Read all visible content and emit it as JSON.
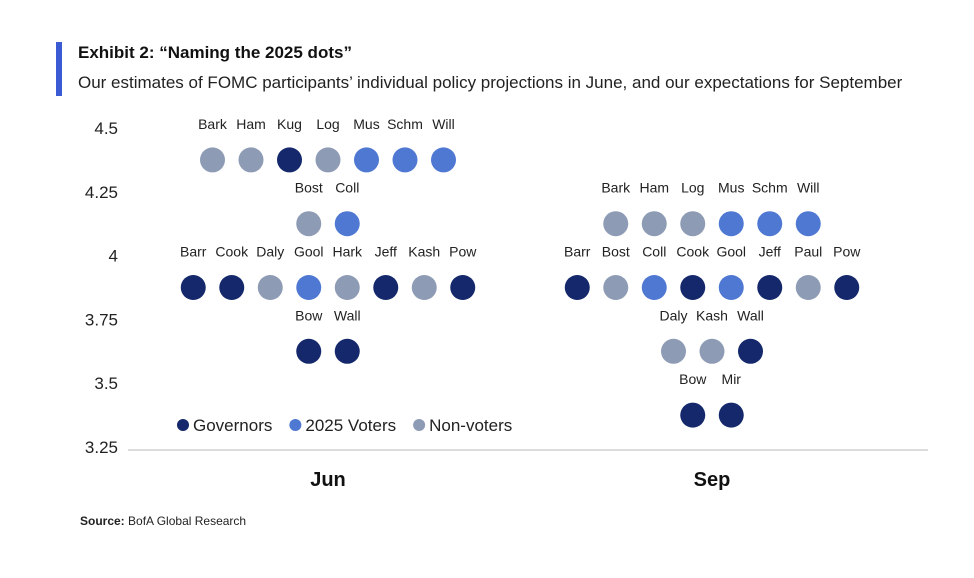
{
  "header": {
    "title": "Exhibit 2: “Naming the 2025 dots”",
    "subtitle": "Our estimates of FOMC participants’ individual policy projections in June, and our expectations for September"
  },
  "footer": {
    "source_label": "Source:",
    "source_text": "BofA Global Research"
  },
  "colors": {
    "accent": "#3b5bd5",
    "governors": "#14286b",
    "voters_2025": "#4f78d3",
    "non_voters": "#8e9bb5",
    "axis": "#d0d0d0"
  },
  "chart_data": {
    "type": "scatter",
    "title": "Exhibit 2: “Naming the 2025 dots”",
    "ylim": [
      3.25,
      4.5
    ],
    "yticks": [
      "4.5",
      "4.25",
      "4",
      "3.75",
      "3.5",
      "3.25"
    ],
    "ytick_values": [
      4.5,
      4.25,
      4.0,
      3.75,
      3.5,
      3.25
    ],
    "categories": [
      "Jun",
      "Sep"
    ],
    "grid": false,
    "legend_position": "bottom-left",
    "legend": [
      {
        "label": "Governors",
        "group": "governors"
      },
      {
        "label": "2025 Voters",
        "group": "voters_2025"
      },
      {
        "label": "Non-voters",
        "group": "non_voters"
      }
    ],
    "panels": [
      {
        "category": "Jun",
        "rows": [
          {
            "value": 4.375,
            "dots": [
              {
                "name": "Bark",
                "group": "non_voters"
              },
              {
                "name": "Ham",
                "group": "non_voters"
              },
              {
                "name": "Kug",
                "group": "governors"
              },
              {
                "name": "Log",
                "group": "non_voters"
              },
              {
                "name": "Mus",
                "group": "voters_2025"
              },
              {
                "name": "Schm",
                "group": "voters_2025"
              },
              {
                "name": "Will",
                "group": "voters_2025"
              }
            ]
          },
          {
            "value": 4.125,
            "dots": [
              {
                "name": "Bost",
                "group": "non_voters"
              },
              {
                "name": "Coll",
                "group": "voters_2025"
              }
            ]
          },
          {
            "value": 3.875,
            "dots": [
              {
                "name": "Barr",
                "group": "governors"
              },
              {
                "name": "Cook",
                "group": "governors"
              },
              {
                "name": "Daly",
                "group": "non_voters"
              },
              {
                "name": "Gool",
                "group": "voters_2025"
              },
              {
                "name": "Hark",
                "group": "non_voters"
              },
              {
                "name": "Jeff",
                "group": "governors"
              },
              {
                "name": "Kash",
                "group": "non_voters"
              },
              {
                "name": "Pow",
                "group": "governors"
              }
            ]
          },
          {
            "value": 3.625,
            "dots": [
              {
                "name": "Bow",
                "group": "governors"
              },
              {
                "name": "Wall",
                "group": "governors"
              }
            ]
          }
        ]
      },
      {
        "category": "Sep",
        "rows": [
          {
            "value": 4.125,
            "dots": [
              {
                "name": "Bark",
                "group": "non_voters"
              },
              {
                "name": "Ham",
                "group": "non_voters"
              },
              {
                "name": "Log",
                "group": "non_voters"
              },
              {
                "name": "Mus",
                "group": "voters_2025"
              },
              {
                "name": "Schm",
                "group": "voters_2025"
              },
              {
                "name": "Will",
                "group": "voters_2025"
              }
            ]
          },
          {
            "value": 3.875,
            "dots": [
              {
                "name": "Barr",
                "group": "governors"
              },
              {
                "name": "Bost",
                "group": "non_voters"
              },
              {
                "name": "Coll",
                "group": "voters_2025"
              },
              {
                "name": "Cook",
                "group": "governors"
              },
              {
                "name": "Gool",
                "group": "voters_2025"
              },
              {
                "name": "Jeff",
                "group": "governors"
              },
              {
                "name": "Paul",
                "group": "non_voters"
              },
              {
                "name": "Pow",
                "group": "governors"
              }
            ]
          },
          {
            "value": 3.625,
            "dots": [
              {
                "name": "Daly",
                "group": "non_voters"
              },
              {
                "name": "Kash",
                "group": "non_voters"
              },
              {
                "name": "Wall",
                "group": "governors"
              }
            ]
          },
          {
            "value": 3.375,
            "dots": [
              {
                "name": "Bow",
                "group": "governors"
              },
              {
                "name": "Mir",
                "group": "governors"
              }
            ]
          }
        ]
      }
    ]
  }
}
